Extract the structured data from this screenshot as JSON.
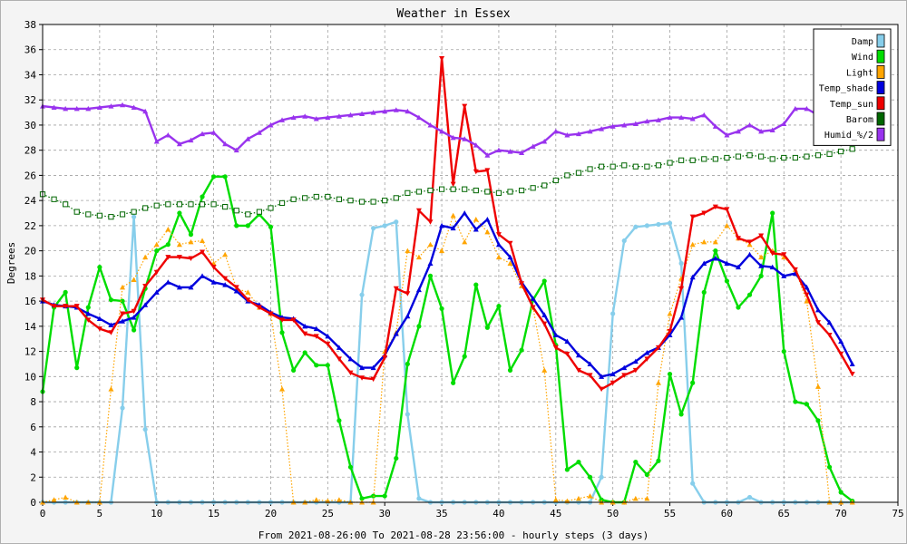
{
  "chart_data": {
    "type": "line",
    "title": "Weather in Essex",
    "xlabel": "From 2021-08-26:00 To 2021-08-28 23:56:00 - hourly steps (3 days)",
    "ylabel": "Degrees",
    "xlim": [
      0,
      75
    ],
    "ylim": [
      0,
      38
    ],
    "xticks": [
      "0",
      "5",
      "10",
      "15",
      "20",
      "25",
      "30",
      "35",
      "40",
      "45",
      "50",
      "55",
      "60",
      "65",
      "70",
      "75"
    ],
    "yticks": [
      "0",
      "2",
      "4",
      "6",
      "8",
      "10",
      "12",
      "14",
      "16",
      "18",
      "20",
      "22",
      "24",
      "26",
      "28",
      "30",
      "32",
      "34",
      "36",
      "38"
    ],
    "grid": true,
    "legend_position": "top-right",
    "series": [
      {
        "name": "Damp",
        "color": "#87ceeb",
        "marker": "circle",
        "dotted": false,
        "values": [
          0,
          0,
          0,
          0,
          0,
          0,
          0,
          7.5,
          22.7,
          5.8,
          0,
          0,
          0,
          0,
          0,
          0,
          0,
          0,
          0,
          0,
          0,
          0,
          0,
          0,
          0,
          0,
          0,
          0,
          16.5,
          21.8,
          22,
          22.3,
          7,
          0.3,
          0,
          0,
          0,
          0,
          0,
          0,
          0,
          0,
          0,
          0,
          0,
          0,
          0,
          0,
          0,
          2,
          15,
          20.8,
          21.9,
          22,
          22.1,
          22.2,
          19,
          1.5,
          0,
          0,
          0,
          0,
          0.4,
          0,
          0,
          0,
          0,
          0,
          0,
          0,
          0,
          0
        ]
      },
      {
        "name": "Wind",
        "color": "#00dd00",
        "marker": "circle",
        "dotted": false,
        "values": [
          8.8,
          15.5,
          16.7,
          10.7,
          15.5,
          18.7,
          16.1,
          16,
          13.7,
          17,
          20,
          20.5,
          23,
          21.3,
          24.3,
          25.9,
          25.9,
          22,
          22,
          22.9,
          21.9,
          13.5,
          10.5,
          11.9,
          10.9,
          10.9,
          6.5,
          2.8,
          0.3,
          0.5,
          0.5,
          3.5,
          11,
          14,
          18,
          15.4,
          9.5,
          11.6,
          17.3,
          13.9,
          15.6,
          10.5,
          12.1,
          16.1,
          17.6,
          12.5,
          2.6,
          3.2,
          2,
          0.2,
          0,
          0,
          3.2,
          2.2,
          3.3,
          10.2,
          7,
          9.5,
          16.7,
          20,
          17.6,
          15.5,
          16.5,
          18,
          23,
          12,
          8,
          7.8,
          6.5,
          2.8,
          0.8,
          0.1
        ]
      },
      {
        "name": "Light",
        "color": "#ffa500",
        "marker": "triangle",
        "dotted": true,
        "values": [
          0,
          0.2,
          0.4,
          0,
          0,
          0,
          9,
          17.1,
          17.7,
          19.5,
          20.5,
          21.7,
          20.5,
          20.7,
          20.8,
          19,
          19.7,
          17,
          16.7,
          15.5,
          15,
          9,
          0,
          0,
          0.2,
          0.1,
          0.2,
          0,
          0,
          0,
          12,
          13.5,
          20,
          19.5,
          20.5,
          20,
          22.8,
          20.7,
          22.5,
          21.5,
          19.5,
          19,
          17.2,
          15.5,
          10.5,
          0.2,
          0.1,
          0.3,
          0.5,
          0,
          0,
          0,
          0.3,
          0.3,
          9.5,
          15,
          17.8,
          20.5,
          20.7,
          20.7,
          22,
          21,
          20.5,
          19.5,
          20,
          19.5,
          18.5,
          16,
          9.2,
          0,
          0,
          0
        ]
      },
      {
        "name": "Temp_shade",
        "color": "#0000dd",
        "marker": "triangle",
        "dotted": false,
        "values": [
          16,
          15.7,
          15.6,
          15.5,
          15,
          14.6,
          14.1,
          14.4,
          14.7,
          15.7,
          16.7,
          17.5,
          17.1,
          17.1,
          18,
          17.5,
          17.3,
          16.8,
          16,
          15.7,
          15.1,
          14.7,
          14.6,
          14,
          13.8,
          13.2,
          12.3,
          11.4,
          10.7,
          10.7,
          11.7,
          13.4,
          14.8,
          16.9,
          19,
          22,
          21.8,
          23,
          21.7,
          22.5,
          20.5,
          19.5,
          17.5,
          16.2,
          14.9,
          13.3,
          12.8,
          11.7,
          11,
          10,
          10.2,
          10.7,
          11.2,
          11.9,
          12.3,
          13.3,
          14.7,
          17.9,
          19,
          19.4,
          19,
          18.7,
          19.7,
          18.8,
          18.7,
          18,
          18.2,
          17.1,
          15.3,
          14.3,
          12.8,
          11
        ]
      },
      {
        "name": "Temp_sun",
        "color": "#ee0000",
        "marker": "triangle-down",
        "dotted": false,
        "values": [
          16.1,
          15.6,
          15.6,
          15.6,
          14.5,
          13.8,
          13.5,
          15,
          15.2,
          17.2,
          18.3,
          19.5,
          19.5,
          19.4,
          19.9,
          18.7,
          17.8,
          17.1,
          16.1,
          15.5,
          15,
          14.5,
          14.5,
          13.4,
          13.2,
          12.6,
          11.4,
          10.3,
          9.9,
          9.8,
          11.5,
          17,
          16.6,
          23.2,
          22.3,
          35.3,
          25.3,
          31.5,
          26.3,
          26.4,
          21.3,
          20.6,
          17.4,
          15.5,
          14.2,
          12.3,
          11.8,
          10.5,
          10.1,
          9,
          9.5,
          10.1,
          10.5,
          11.4,
          12.3,
          13.6,
          17,
          22.7,
          23,
          23.5,
          23.3,
          21,
          20.7,
          21.2,
          19.8,
          19.7,
          18.5,
          16.5,
          14.3,
          13.3,
          11.8,
          10.2
        ]
      },
      {
        "name": "Barom",
        "color": "#006600",
        "marker": "square",
        "dotted": true,
        "values": [
          24.5,
          24.1,
          23.7,
          23.1,
          22.9,
          22.8,
          22.7,
          22.9,
          23.1,
          23.4,
          23.6,
          23.7,
          23.7,
          23.7,
          23.7,
          23.7,
          23.5,
          23.2,
          22.9,
          23.1,
          23.4,
          23.8,
          24.1,
          24.2,
          24.3,
          24.3,
          24.1,
          24,
          23.9,
          23.9,
          24,
          24.2,
          24.6,
          24.7,
          24.8,
          24.9,
          24.9,
          24.9,
          24.8,
          24.7,
          24.6,
          24.7,
          24.8,
          25,
          25.2,
          25.6,
          26,
          26.2,
          26.5,
          26.7,
          26.7,
          26.8,
          26.7,
          26.7,
          26.8,
          27,
          27.2,
          27.2,
          27.3,
          27.3,
          27.4,
          27.5,
          27.6,
          27.5,
          27.3,
          27.4,
          27.4,
          27.5,
          27.6,
          27.7,
          27.9,
          28.1
        ]
      },
      {
        "name": "Humid_%/2",
        "color": "#9933ee",
        "marker": "triangle",
        "dotted": false,
        "values": [
          31.5,
          31.4,
          31.3,
          31.3,
          31.3,
          31.4,
          31.5,
          31.6,
          31.4,
          31.1,
          28.7,
          29.2,
          28.5,
          28.8,
          29.3,
          29.4,
          28.5,
          28,
          28.9,
          29.4,
          30,
          30.4,
          30.6,
          30.7,
          30.5,
          30.6,
          30.7,
          30.8,
          30.9,
          31,
          31.1,
          31.2,
          31.1,
          30.6,
          30,
          29.5,
          29,
          28.9,
          28.4,
          27.6,
          28,
          27.9,
          27.8,
          28.3,
          28.7,
          29.5,
          29.2,
          29.3,
          29.5,
          29.7,
          29.9,
          30,
          30.1,
          30.3,
          30.4,
          30.6,
          30.6,
          30.5,
          30.8,
          29.9,
          29.2,
          29.5,
          30,
          29.5,
          29.6,
          30.1,
          31.3,
          31.3,
          30.8,
          30.6,
          30.5,
          30.7
        ]
      }
    ]
  }
}
